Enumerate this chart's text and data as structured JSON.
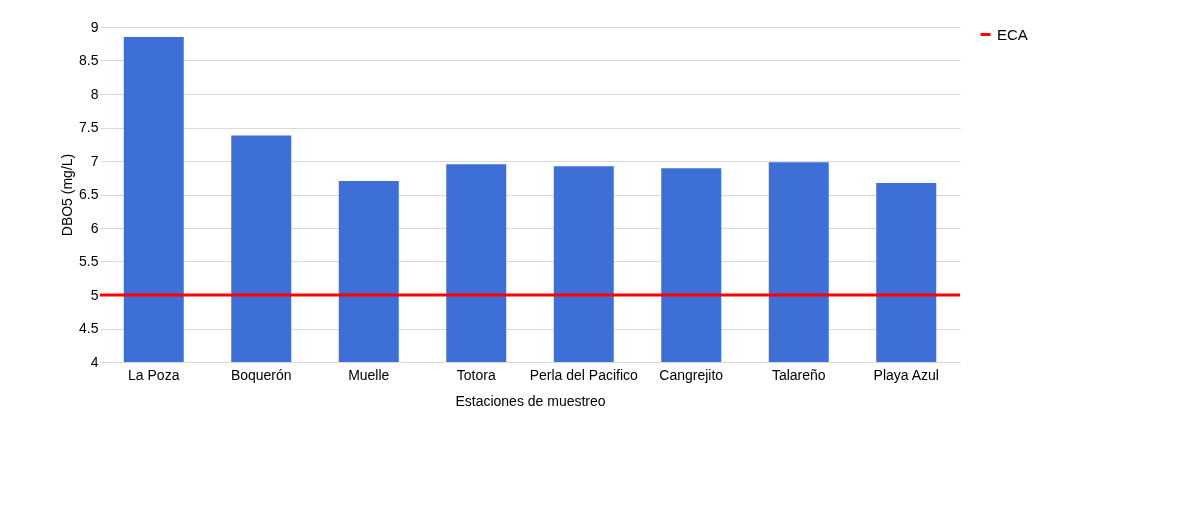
{
  "chart_data": {
    "type": "bar",
    "xlabel": "Estaciones de muestreo",
    "ylabel": "DBO5 (mg/L)",
    "categories": [
      "La Poza",
      "Boquerón",
      "Muelle",
      "Totora",
      "Perla del Pacifico",
      "Cangrejito",
      "Talareño",
      "Playa Azul"
    ],
    "values": [
      8.85,
      7.38,
      6.7,
      6.95,
      6.92,
      6.89,
      6.98,
      6.67
    ],
    "color": "#3d6fd6",
    "ylim": [
      4,
      9
    ],
    "yticks": [
      4,
      4.5,
      5,
      5.5,
      6,
      6.5,
      7,
      7.5,
      8,
      8.5,
      9
    ],
    "grid": "y",
    "legend": "right",
    "ref_lines": [
      {
        "axis": "y",
        "value": 5,
        "label": "ECA",
        "color": "#ff0000",
        "line_style": "solid"
      }
    ]
  }
}
